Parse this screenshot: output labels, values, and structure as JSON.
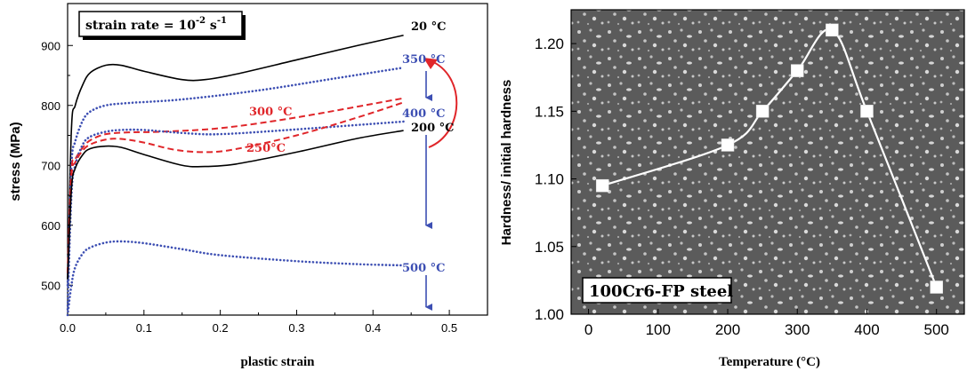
{
  "colors": {
    "black": "#000000",
    "blue": "#3d4fb3",
    "red": "#e0262a",
    "micrograph_bg": "#5b5b5b",
    "hardness_line": "#ffffff"
  },
  "left": {
    "box_label": "strain rate = 10",
    "box_exp1": "-2",
    "box_unit": " s",
    "box_exp2": "-1",
    "xlabel": "plastic strain",
    "ylabel": "stress (MPa)",
    "xticks": [
      "0.0",
      "0.1",
      "0.2",
      "0.3",
      "0.4",
      "0.5"
    ],
    "yticks": [
      "500",
      "600",
      "700",
      "800",
      "900"
    ],
    "annotations": {
      "t20": "20 °C",
      "t350": "350 °C",
      "t400": "400 °C",
      "t200": "200 °C",
      "t300": "300 °C",
      "t250": "250°C",
      "t500": "500 °C"
    }
  },
  "right": {
    "label": "100Cr6-FP steel",
    "xlabel": "Temperature (°C)",
    "ylabel": "Hardness/ initial hardness",
    "xticks": [
      "0",
      "100",
      "200",
      "300",
      "400",
      "500"
    ],
    "yticks": [
      "1.00",
      "1.05",
      "1.10",
      "1.15",
      "1.20"
    ]
  },
  "chart_data": [
    {
      "type": "line",
      "xlabel": "plastic strain",
      "ylabel": "stress (MPa)",
      "xlim": [
        0.0,
        0.55
      ],
      "ylim": [
        450,
        970
      ],
      "grid": false,
      "series": [
        {
          "name": "20 °C",
          "color": "#000000",
          "style": "solid",
          "x": [
            0.0,
            0.005,
            0.01,
            0.02,
            0.03,
            0.05,
            0.07,
            0.1,
            0.15,
            0.18,
            0.22,
            0.3,
            0.38,
            0.44
          ],
          "y": [
            510,
            760,
            800,
            835,
            855,
            867,
            867,
            857,
            843,
            843,
            852,
            876,
            900,
            917
          ]
        },
        {
          "name": "350 °C",
          "color": "#3d4fb3",
          "style": "dotted",
          "x": [
            0.0,
            0.005,
            0.01,
            0.02,
            0.03,
            0.05,
            0.08,
            0.15,
            0.25,
            0.35,
            0.44
          ],
          "y": [
            500,
            700,
            740,
            775,
            790,
            800,
            804,
            810,
            825,
            845,
            863
          ]
        },
        {
          "name": "300 °C",
          "color": "#e0262a",
          "style": "dashed",
          "x": [
            0.0,
            0.005,
            0.01,
            0.02,
            0.03,
            0.05,
            0.08,
            0.12,
            0.2,
            0.3,
            0.44
          ],
          "y": [
            520,
            690,
            710,
            730,
            742,
            752,
            755,
            756,
            762,
            780,
            812
          ]
        },
        {
          "name": "400 °C",
          "color": "#3d4fb3",
          "style": "dotted",
          "x": [
            0.0,
            0.005,
            0.01,
            0.02,
            0.03,
            0.05,
            0.07,
            0.1,
            0.15,
            0.2,
            0.3,
            0.44
          ],
          "y": [
            460,
            650,
            700,
            735,
            748,
            756,
            759,
            759,
            754,
            752,
            760,
            773
          ]
        },
        {
          "name": "250°C",
          "color": "#e0262a",
          "style": "dashed",
          "x": [
            0.0,
            0.005,
            0.01,
            0.02,
            0.03,
            0.05,
            0.07,
            0.1,
            0.14,
            0.18,
            0.22,
            0.3,
            0.38,
            0.44
          ],
          "y": [
            520,
            680,
            705,
            725,
            735,
            743,
            744,
            738,
            726,
            722,
            727,
            750,
            780,
            805
          ]
        },
        {
          "name": "200 °C",
          "color": "#000000",
          "style": "solid",
          "x": [
            0.0,
            0.005,
            0.01,
            0.02,
            0.03,
            0.05,
            0.07,
            0.1,
            0.15,
            0.18,
            0.22,
            0.3,
            0.38,
            0.44
          ],
          "y": [
            510,
            660,
            695,
            718,
            728,
            732,
            730,
            718,
            700,
            698,
            702,
            722,
            745,
            758
          ]
        },
        {
          "name": "500 °C",
          "color": "#3d4fb3",
          "style": "dotted",
          "x": [
            0.0,
            0.005,
            0.01,
            0.02,
            0.03,
            0.05,
            0.07,
            0.1,
            0.15,
            0.2,
            0.3,
            0.38,
            0.44
          ],
          "y": [
            450,
            500,
            530,
            553,
            563,
            571,
            573,
            570,
            560,
            550,
            540,
            535,
            533
          ]
        }
      ]
    },
    {
      "type": "line",
      "xlabel": "Temperature (°C)",
      "ylabel": "Hardness/ initial hardness",
      "xlim": [
        -25,
        540
      ],
      "ylim": [
        1.0,
        1.225
      ],
      "grid": false,
      "series": [
        {
          "name": "100Cr6-FP steel",
          "x": [
            20,
            200,
            250,
            300,
            350,
            400,
            500
          ],
          "y": [
            1.095,
            1.125,
            1.15,
            1.18,
            1.21,
            1.15,
            1.02
          ]
        }
      ]
    }
  ]
}
